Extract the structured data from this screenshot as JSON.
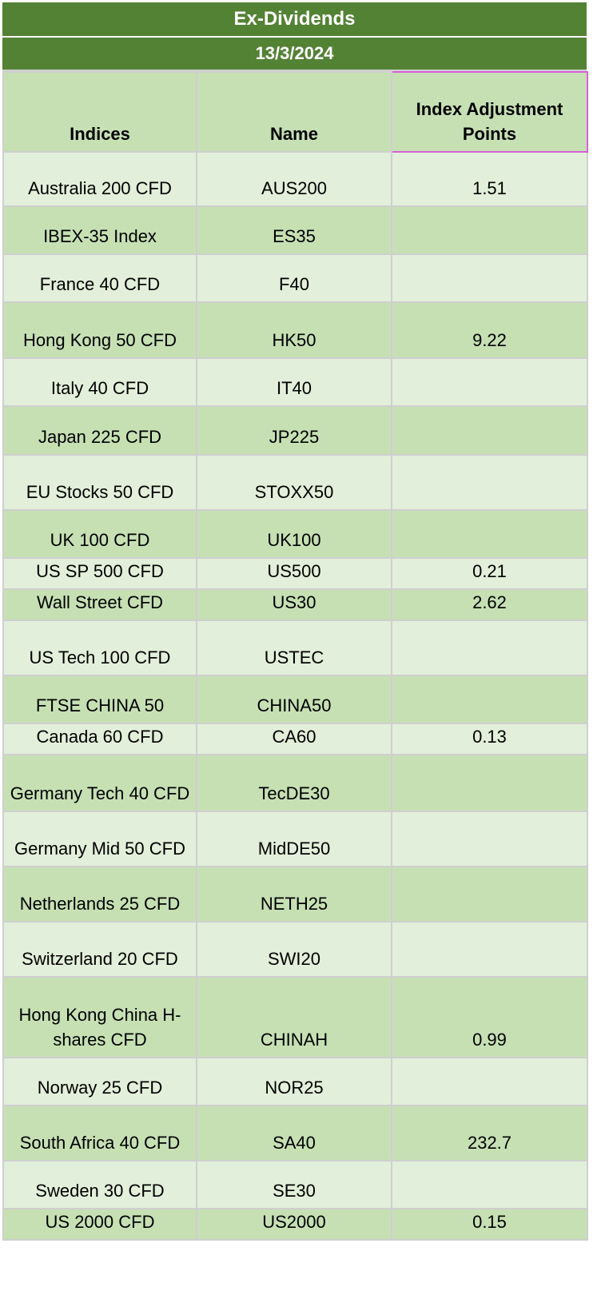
{
  "header": {
    "title": "Ex-Dividends",
    "date": "13/3/2024"
  },
  "columns": [
    "Indices",
    "Name",
    "Index Adjustment Points"
  ],
  "rows": [
    {
      "index": "Australia 200 CFD",
      "name": "AUS200",
      "points": "1.51",
      "h": 68,
      "shade": "light"
    },
    {
      "index": "IBEX-35 Index",
      "name": "ES35",
      "points": "",
      "h": 60,
      "shade": "dark"
    },
    {
      "index": "France 40 CFD",
      "name": "F40",
      "points": "",
      "h": 60,
      "shade": "light"
    },
    {
      "index": "Hong Kong 50 CFD",
      "name": "HK50",
      "points": "9.22",
      "h": 70,
      "shade": "dark"
    },
    {
      "index": "Italy 40 CFD",
      "name": "IT40",
      "points": "",
      "h": 60,
      "shade": "light"
    },
    {
      "index": "Japan 225 CFD",
      "name": "JP225",
      "points": "",
      "h": 61,
      "shade": "dark"
    },
    {
      "index": "EU Stocks 50 CFD",
      "name": "STOXX50",
      "points": "",
      "h": 69,
      "shade": "light"
    },
    {
      "index": "UK 100 CFD",
      "name": "UK100",
      "points": "",
      "h": 60,
      "shade": "dark"
    },
    {
      "index": "US SP 500 CFD",
      "name": "US500",
      "points": "0.21",
      "h": 39,
      "shade": "light"
    },
    {
      "index": "Wall Street CFD",
      "name": "US30",
      "points": "2.62",
      "h": 39,
      "shade": "dark"
    },
    {
      "index": "US Tech 100 CFD",
      "name": "USTEC",
      "points": "",
      "h": 69,
      "shade": "light"
    },
    {
      "index": "FTSE CHINA 50",
      "name": "CHINA50",
      "points": "",
      "h": 60,
      "shade": "dark"
    },
    {
      "index": "Canada 60 CFD",
      "name": "CA60",
      "points": "0.13",
      "h": 39,
      "shade": "light"
    },
    {
      "index": "Germany Tech 40 CFD",
      "name": "TecDE30",
      "points": "",
      "h": 71,
      "shade": "dark"
    },
    {
      "index": "Germany Mid 50 CFD",
      "name": "MidDE50",
      "points": "",
      "h": 69,
      "shade": "light"
    },
    {
      "index": "Netherlands 25 CFD",
      "name": "NETH25",
      "points": "",
      "h": 69,
      "shade": "dark"
    },
    {
      "index": "Switzerland 20 CFD",
      "name": "SWI20",
      "points": "",
      "h": 69,
      "shade": "light"
    },
    {
      "index": "Hong Kong China H-shares CFD",
      "name": "CHINAH",
      "points": "0.99",
      "h": 101,
      "shade": "dark"
    },
    {
      "index": "Norway 25 CFD",
      "name": "NOR25",
      "points": "",
      "h": 60,
      "shade": "light"
    },
    {
      "index": "South Africa 40 CFD",
      "name": "SA40",
      "points": "232.7",
      "h": 69,
      "shade": "dark"
    },
    {
      "index": "Sweden 30 CFD",
      "name": "SE30",
      "points": "",
      "h": 60,
      "shade": "light"
    },
    {
      "index": "US 2000 CFD",
      "name": "US2000",
      "points": "0.15",
      "h": 39,
      "shade": "dark"
    }
  ]
}
